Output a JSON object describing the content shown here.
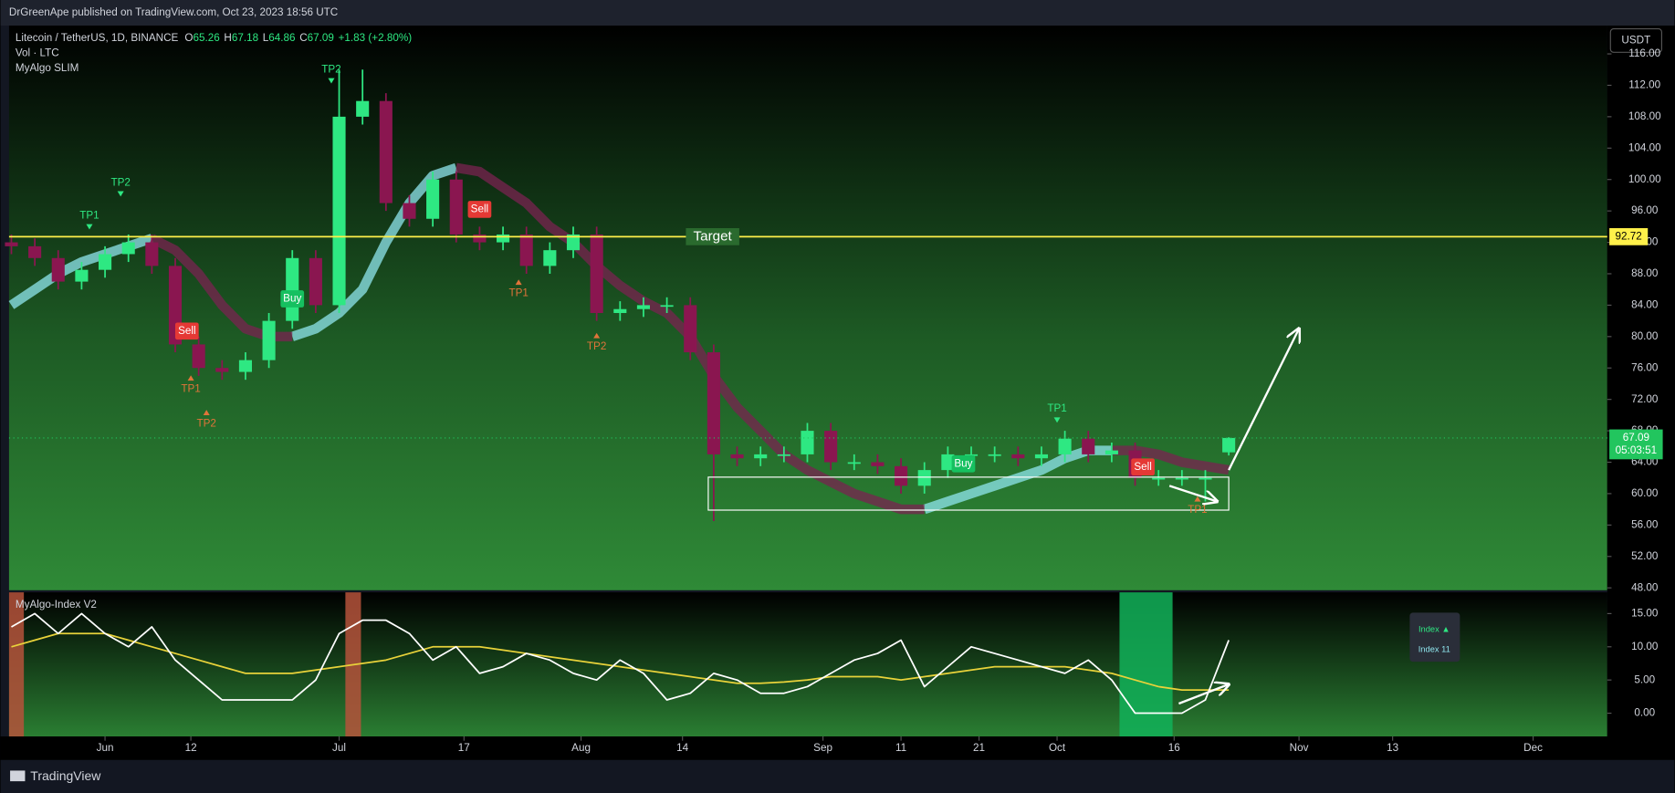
{
  "header": {
    "title": "DrGreenApe published on TradingView.com, Oct 23, 2023 18:56 UTC",
    "currency": "USDT"
  },
  "footer": {
    "brand": "TradingView"
  },
  "chart_data": [
    {
      "type": "candlestick",
      "title": "Litecoin / TetherUS, 1D, BINANCE",
      "ohlc_legend": [
        {
          "label": "O",
          "value": "65.26"
        },
        {
          "label": "H",
          "value": "67.18"
        },
        {
          "label": "L",
          "value": "64.86"
        },
        {
          "label": "C",
          "value": "67.09"
        }
      ],
      "change": "+1.83 (+2.80%)",
      "studies": [
        "Vol · LTC",
        "MyAlgo SLIM"
      ],
      "x": [
        -12,
        -9,
        -6,
        -3,
        0,
        3,
        6,
        9,
        12,
        15,
        18,
        21,
        24,
        27,
        30,
        33,
        36,
        39,
        42,
        45,
        48,
        51,
        54,
        57,
        60,
        63,
        66,
        69,
        72,
        75,
        78,
        81,
        84,
        87,
        90,
        93,
        96,
        99,
        102,
        105,
        108,
        111,
        114,
        117,
        120,
        123,
        126,
        129,
        132,
        135,
        138,
        141,
        144
      ],
      "open": [
        92,
        91.5,
        90,
        87,
        88.5,
        90.5,
        92,
        89,
        79,
        76,
        75.5,
        77,
        82,
        90,
        84,
        108,
        110,
        97,
        95,
        100,
        93,
        92,
        93,
        89,
        91,
        93,
        83,
        83.5,
        84,
        84,
        78,
        65,
        64.5,
        65,
        65,
        68,
        64,
        64,
        63.5,
        61,
        63,
        65,
        65,
        65,
        64.5,
        65,
        67,
        65,
        65.5,
        62,
        62,
        62,
        65.26
      ],
      "high": [
        93,
        92.5,
        91,
        89.5,
        91.5,
        93,
        93,
        90,
        80,
        77,
        78,
        83,
        91,
        91,
        114,
        114,
        111,
        98,
        101,
        101,
        94,
        94,
        94,
        92,
        94,
        94,
        84.5,
        85,
        85,
        85,
        79,
        66,
        66,
        66,
        69,
        69,
        65,
        65,
        64.5,
        64,
        66,
        66,
        66,
        66,
        66,
        68,
        68,
        66.5,
        66.5,
        63,
        63,
        63,
        67.18
      ],
      "low": [
        90.5,
        89,
        86,
        86,
        87.5,
        89.5,
        88,
        78,
        75,
        74.5,
        74.5,
        76,
        81,
        83,
        83,
        107,
        96,
        94,
        94,
        92,
        91,
        91,
        88,
        88,
        90,
        82,
        82,
        82.5,
        83,
        77,
        56.5,
        63.5,
        63.5,
        64,
        64,
        63,
        63,
        62.5,
        60,
        60,
        62,
        64,
        64,
        63.5,
        63.5,
        64,
        64,
        64,
        61,
        61,
        61,
        59,
        64.86
      ],
      "close": [
        91.5,
        90,
        87,
        88.5,
        90.5,
        92,
        89,
        79,
        76,
        75.5,
        77,
        82,
        90,
        84,
        108,
        110,
        97,
        95,
        100,
        93,
        92,
        93,
        89,
        91,
        93,
        83,
        83.5,
        84,
        84,
        78,
        65,
        64.5,
        65,
        65,
        68,
        64,
        64,
        63.5,
        61,
        63,
        65,
        65,
        65,
        64.5,
        65,
        67,
        65,
        65.5,
        62,
        62,
        62,
        62,
        67.09
      ],
      "up_color": "#2ee882",
      "down_color": "#8a1650",
      "ribbons": [
        {
          "color": "#8fe6ee",
          "values": [
            84,
            86,
            88,
            89.5,
            90.5,
            91.5,
            92.5,
            null,
            null,
            null,
            null,
            null,
            80,
            81,
            83,
            86,
            92,
            97,
            100.5,
            101.5,
            null,
            null,
            null,
            null,
            null,
            null,
            null,
            null,
            null,
            null,
            null,
            null,
            null,
            null,
            null,
            null,
            null,
            null,
            null,
            58,
            59,
            60,
            61,
            62,
            63,
            64.5,
            65.5,
            65.5,
            null,
            null,
            null,
            null,
            null
          ]
        },
        {
          "color": "#7a2350",
          "values": [
            null,
            null,
            null,
            null,
            null,
            null,
            92.5,
            91,
            88,
            84,
            81,
            80,
            80,
            null,
            null,
            null,
            null,
            null,
            null,
            101.5,
            101,
            99,
            97,
            94,
            92,
            89,
            86.5,
            84.5,
            83,
            80,
            75,
            71,
            68,
            65,
            63,
            61.5,
            60,
            59,
            58,
            58,
            null,
            null,
            null,
            null,
            null,
            null,
            null,
            65.5,
            65.5,
            65,
            64,
            63.5,
            63
          ]
        }
      ],
      "target": {
        "label": "Target",
        "value": 92.72,
        "value_label": "92.72",
        "color": "#fff04a"
      },
      "last_price": {
        "value": 67.09,
        "countdown": "05:03:51",
        "color": "#22c55e"
      },
      "signals": [
        {
          "label": "TP1",
          "x": -2,
          "y": 95.4,
          "color": "#2ee882"
        },
        {
          "label": "TP2",
          "x": 2,
          "y": 99.6,
          "color": "#2ee882"
        },
        {
          "label": "Sell",
          "x": 10.5,
          "y": 80.7,
          "color": "#e53935"
        },
        {
          "label": "TP1",
          "x": 11,
          "y": 73.3,
          "color": "#e0743a"
        },
        {
          "label": "TP2",
          "x": 13,
          "y": 68.9,
          "color": "#e0743a"
        },
        {
          "label": "Buy",
          "x": 24,
          "y": 84.8,
          "color": "#16c060"
        },
        {
          "label": "TP2",
          "x": 29,
          "y": 114,
          "color": "#2ee882"
        },
        {
          "label": "Sell",
          "x": 48,
          "y": 96.2,
          "color": "#e53935"
        },
        {
          "label": "TP1",
          "x": 53,
          "y": 85.5,
          "color": "#e0743a"
        },
        {
          "label": "TP2",
          "x": 63,
          "y": 78.7,
          "color": "#e0743a"
        },
        {
          "label": "Buy",
          "x": 110,
          "y": 63.8,
          "color": "#16c060"
        },
        {
          "label": "TP1",
          "x": 122,
          "y": 70.8,
          "color": "#2ee882"
        },
        {
          "label": "Sell",
          "x": 133,
          "y": 63.4,
          "color": "#e53935"
        },
        {
          "label": "TP1",
          "x": 140,
          "y": 57.9,
          "color": "#e0743a"
        }
      ],
      "box": {
        "x": [
          77.3,
          144
        ],
        "y": [
          57.9,
          62.1
        ]
      },
      "arrows": [
        {
          "x": [
            144,
            153
          ],
          "y": [
            63,
            81
          ]
        },
        {
          "x": [
            136.4,
            142.5
          ],
          "y": [
            61,
            59
          ]
        }
      ],
      "xlim": [
        -12.3,
        192.5
      ],
      "ylim": [
        47.7,
        119.6
      ],
      "xticks": [
        {
          "value": 0,
          "label": "Jun"
        },
        {
          "value": 11,
          "label": "12"
        },
        {
          "value": 30,
          "label": "Jul"
        },
        {
          "value": 46,
          "label": "17"
        },
        {
          "value": 61,
          "label": "Aug"
        },
        {
          "value": 74,
          "label": "14"
        },
        {
          "value": 92,
          "label": "Sep"
        },
        {
          "value": 102,
          "label": "11"
        },
        {
          "value": 112,
          "label": "21"
        },
        {
          "value": 122,
          "label": "Oct"
        },
        {
          "value": 137,
          "label": "16"
        },
        {
          "value": 153,
          "label": "Nov"
        },
        {
          "value": 165,
          "label": "13"
        },
        {
          "value": 183,
          "label": "Dec"
        }
      ],
      "yticks": [
        {
          "value": 48,
          "label": "48.00"
        },
        {
          "value": 52,
          "label": "52.00"
        },
        {
          "value": 56,
          "label": "56.00"
        },
        {
          "value": 60,
          "label": "60.00"
        },
        {
          "value": 64,
          "label": "64.00"
        },
        {
          "value": 68,
          "label": "68.00"
        },
        {
          "value": 72,
          "label": "72.00"
        },
        {
          "value": 76,
          "label": "76.00"
        },
        {
          "value": 80,
          "label": "80.00"
        },
        {
          "value": 84,
          "label": "84.00"
        },
        {
          "value": 88,
          "label": "88.00"
        },
        {
          "value": 92,
          "label": "92.00"
        },
        {
          "value": 96,
          "label": "96.00"
        },
        {
          "value": 100,
          "label": "100.00"
        },
        {
          "value": 104,
          "label": "104.00"
        },
        {
          "value": 108,
          "label": "108.00"
        },
        {
          "value": 112,
          "label": "112.00"
        },
        {
          "value": 116,
          "label": "116.00"
        }
      ]
    },
    {
      "type": "line",
      "title": "MyAlgo-Index V2",
      "x": [
        -12,
        -9,
        -6,
        -3,
        0,
        3,
        6,
        9,
        12,
        15,
        18,
        21,
        24,
        27,
        30,
        33,
        36,
        39,
        42,
        45,
        48,
        51,
        54,
        57,
        60,
        63,
        66,
        69,
        72,
        75,
        78,
        81,
        84,
        87,
        90,
        93,
        96,
        99,
        102,
        105,
        108,
        111,
        114,
        117,
        120,
        123,
        126,
        129,
        132,
        135,
        138,
        141,
        144
      ],
      "series": [
        {
          "color": "#ffffff",
          "values": [
            13,
            15,
            12,
            15,
            12,
            10,
            13,
            8,
            5,
            2,
            2,
            2,
            2,
            5,
            12,
            14,
            14,
            12,
            8,
            10,
            6,
            7,
            9,
            8,
            6,
            5,
            8,
            6,
            2,
            3,
            6,
            5,
            3,
            3,
            4,
            6,
            8,
            9,
            11,
            4,
            7,
            10,
            9,
            8,
            7,
            6,
            8,
            5,
            0,
            0,
            0,
            2,
            11
          ]
        },
        {
          "color": "#e8d23a",
          "values": [
            10,
            11,
            12,
            12,
            12,
            11,
            10,
            9,
            8,
            7,
            6,
            6,
            6,
            6.5,
            7,
            7.5,
            8,
            9,
            10,
            10,
            10,
            9.5,
            9,
            8.5,
            8,
            7.5,
            7,
            6.5,
            6,
            5.5,
            5,
            4.5,
            4.5,
            4.7,
            5,
            5.5,
            5.5,
            5.5,
            5,
            5.5,
            6,
            6.5,
            7,
            7,
            7,
            7,
            6.5,
            6,
            5,
            4,
            3.5,
            3.5,
            3.5
          ]
        }
      ],
      "highlights": [
        {
          "x": [
            -12.3,
            -10.4
          ],
          "color": "#b5523b"
        },
        {
          "x": [
            30.8,
            32.8
          ],
          "color": "#b5523b"
        },
        {
          "x": [
            130,
            136.8
          ],
          "color": "#12b259"
        }
      ],
      "legend_box": [
        "Index ▲",
        "Index 11"
      ],
      "arrows": [
        {
          "x": [
            137.6,
            144
          ],
          "y": [
            1.45,
            4.35
          ]
        }
      ],
      "xlim": [
        -12.3,
        192.5
      ],
      "ylim": [
        -3.5,
        18.2
      ],
      "yticks": [
        {
          "value": 0,
          "label": "0.00"
        },
        {
          "value": 5,
          "label": "5.00"
        },
        {
          "value": 10,
          "label": "10.00"
        },
        {
          "value": 15,
          "label": "15.00"
        }
      ]
    }
  ]
}
